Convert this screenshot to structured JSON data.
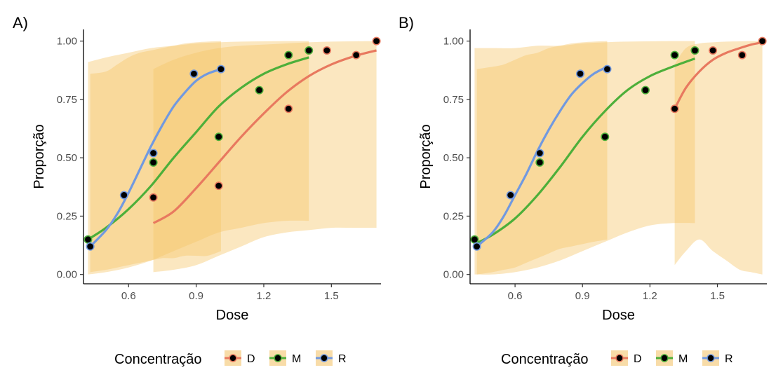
{
  "chart_data": [
    {
      "type": "line",
      "panel_label": "A)",
      "xlabel": "Dose",
      "ylabel": "Proporção",
      "xlim": [
        0.4,
        1.72
      ],
      "ylim": [
        -0.04,
        1.05
      ],
      "xticks": [
        0.6,
        0.9,
        1.2,
        1.5
      ],
      "xtick_labels": [
        "0.6",
        "0.9",
        "1.2",
        "1.5"
      ],
      "yticks": [
        0.0,
        0.25,
        0.5,
        0.75,
        1.0
      ],
      "ytick_labels": [
        "0.00",
        "0.25",
        "0.50",
        "0.75",
        "1.00"
      ],
      "grid": false,
      "series": [
        {
          "name": "D",
          "color": "#E8795F",
          "curve_x": [
            0.71,
            0.8,
            0.9,
            1.0,
            1.1,
            1.2,
            1.3,
            1.4,
            1.5,
            1.6,
            1.7
          ],
          "curve_y": [
            0.22,
            0.27,
            0.37,
            0.48,
            0.59,
            0.69,
            0.78,
            0.85,
            0.9,
            0.935,
            0.96
          ],
          "ci_upper": [
            0.88,
            0.92,
            0.95,
            0.97,
            0.98,
            0.985,
            0.99,
            0.995,
            0.998,
            0.999,
            1.0
          ],
          "ci_lower": [
            0.01,
            0.02,
            0.04,
            0.08,
            0.12,
            0.16,
            0.18,
            0.19,
            0.2,
            0.2,
            0.2
          ],
          "points_x": [
            0.71,
            1.0,
            1.31,
            1.48,
            1.61,
            1.7
          ],
          "points_y": [
            0.33,
            0.38,
            0.71,
            0.96,
            0.94,
            1.0
          ]
        },
        {
          "name": "M",
          "color": "#4DAF3A",
          "curve_x": [
            0.42,
            0.5,
            0.6,
            0.7,
            0.8,
            0.9,
            1.0,
            1.1,
            1.2,
            1.3,
            1.4
          ],
          "curve_y": [
            0.15,
            0.2,
            0.28,
            0.38,
            0.5,
            0.61,
            0.72,
            0.8,
            0.86,
            0.9,
            0.93
          ],
          "ci_upper": [
            0.91,
            0.93,
            0.95,
            0.97,
            0.98,
            0.99,
            0.995,
            0.998,
            0.999,
            1.0,
            1.0
          ],
          "ci_lower": [
            0.0,
            0.01,
            0.03,
            0.06,
            0.1,
            0.14,
            0.18,
            0.2,
            0.22,
            0.23,
            0.23
          ],
          "points_x": [
            0.42,
            0.71,
            1.0,
            1.18,
            1.31,
            1.4
          ],
          "points_y": [
            0.15,
            0.48,
            0.59,
            0.79,
            0.94,
            0.96
          ]
        },
        {
          "name": "R",
          "color": "#7199E0",
          "curve_x": [
            0.43,
            0.5,
            0.55,
            0.6,
            0.65,
            0.7,
            0.75,
            0.8,
            0.85,
            0.9,
            0.95,
            1.01
          ],
          "curve_y": [
            0.12,
            0.19,
            0.26,
            0.35,
            0.45,
            0.55,
            0.64,
            0.72,
            0.78,
            0.83,
            0.86,
            0.88
          ],
          "ci_upper": [
            0.86,
            0.87,
            0.9,
            0.93,
            0.95,
            0.96,
            0.97,
            0.98,
            0.99,
            0.995,
            0.998,
            1.0
          ],
          "ci_lower": [
            0.01,
            0.02,
            0.03,
            0.04,
            0.05,
            0.06,
            0.07,
            0.07,
            0.08,
            0.08,
            0.08,
            0.1
          ],
          "points_x": [
            0.43,
            0.58,
            0.71,
            0.89,
            1.01
          ],
          "points_y": [
            0.12,
            0.34,
            0.52,
            0.86,
            0.88
          ]
        }
      ]
    },
    {
      "type": "line",
      "panel_label": "B)",
      "xlabel": "Dose",
      "ylabel": "Proporção",
      "xlim": [
        0.4,
        1.72
      ],
      "ylim": [
        -0.04,
        1.05
      ],
      "xticks": [
        0.6,
        0.9,
        1.2,
        1.5
      ],
      "xtick_labels": [
        "0.6",
        "0.9",
        "1.2",
        "1.5"
      ],
      "yticks": [
        0.0,
        0.25,
        0.5,
        0.75,
        1.0
      ],
      "ytick_labels": [
        "0.00",
        "0.25",
        "0.50",
        "0.75",
        "1.00"
      ],
      "grid": false,
      "series": [
        {
          "name": "D",
          "color": "#E8795F",
          "curve_x": [
            1.31,
            1.36,
            1.42,
            1.48,
            1.54,
            1.6,
            1.65,
            1.7
          ],
          "curve_y": [
            0.71,
            0.8,
            0.87,
            0.92,
            0.95,
            0.97,
            0.985,
            0.995
          ],
          "ci_upper": [
            0.9,
            0.97,
            0.99,
            0.995,
            0.998,
            0.999,
            1.0,
            1.0
          ],
          "ci_lower": [
            0.04,
            0.1,
            0.15,
            0.1,
            0.06,
            0.02,
            0.01,
            0.0
          ],
          "points_x": [
            1.31,
            1.48,
            1.61,
            1.7
          ],
          "points_y": [
            0.71,
            0.96,
            0.94,
            1.0
          ]
        },
        {
          "name": "M",
          "color": "#4DAF3A",
          "curve_x": [
            0.42,
            0.5,
            0.6,
            0.7,
            0.8,
            0.9,
            1.0,
            1.1,
            1.2,
            1.3,
            1.4
          ],
          "curve_y": [
            0.13,
            0.17,
            0.24,
            0.34,
            0.46,
            0.59,
            0.7,
            0.79,
            0.85,
            0.89,
            0.925
          ],
          "ci_upper": [
            0.97,
            0.97,
            0.97,
            0.98,
            0.98,
            0.99,
            0.995,
            0.998,
            0.999,
            1.0,
            1.0
          ],
          "ci_lower": [
            0.0,
            0.0,
            0.01,
            0.03,
            0.06,
            0.1,
            0.14,
            0.18,
            0.21,
            0.22,
            0.22
          ],
          "points_x": [
            0.42,
            0.71,
            1.0,
            1.18,
            1.31,
            1.4
          ],
          "points_y": [
            0.15,
            0.48,
            0.59,
            0.79,
            0.94,
            0.96
          ]
        },
        {
          "name": "R",
          "color": "#7199E0",
          "curve_x": [
            0.43,
            0.5,
            0.55,
            0.6,
            0.65,
            0.7,
            0.75,
            0.8,
            0.85,
            0.9,
            0.95,
            1.01
          ],
          "curve_y": [
            0.12,
            0.18,
            0.25,
            0.34,
            0.43,
            0.53,
            0.62,
            0.7,
            0.77,
            0.82,
            0.86,
            0.89
          ],
          "ci_upper": [
            0.88,
            0.89,
            0.9,
            0.92,
            0.94,
            0.95,
            0.97,
            0.98,
            0.99,
            0.995,
            0.998,
            1.0
          ],
          "ci_lower": [
            0.0,
            0.01,
            0.02,
            0.03,
            0.05,
            0.07,
            0.09,
            0.11,
            0.12,
            0.13,
            0.14,
            0.15
          ],
          "points_x": [
            0.43,
            0.58,
            0.71,
            0.89,
            1.01
          ],
          "points_y": [
            0.12,
            0.34,
            0.52,
            0.86,
            0.88
          ]
        }
      ]
    }
  ],
  "legend": {
    "title": "Concentração",
    "placement": "bottom",
    "items": [
      {
        "key": "D",
        "label": "D",
        "color": "#E8795F"
      },
      {
        "key": "M",
        "label": "M",
        "color": "#4DAF3A"
      },
      {
        "key": "R",
        "label": "R",
        "color": "#7199E0"
      }
    ]
  },
  "colors": {
    "ribbon": "#F5C56A",
    "legend_key_bg": "#F8DCA8",
    "point_fill": "#000000"
  }
}
